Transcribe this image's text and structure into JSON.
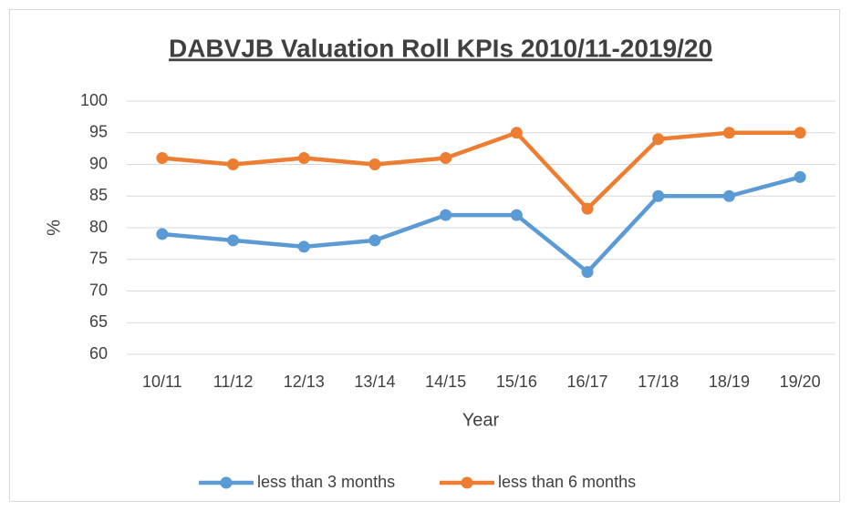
{
  "chart_data": {
    "type": "line",
    "title": "DABVJB Valuation Roll KPIs 2010/11-2019/20",
    "x_label": "Year",
    "y_label": "%",
    "categories": [
      "10/11",
      "11/12",
      "12/13",
      "13/14",
      "14/15",
      "15/16",
      "16/17",
      "17/18",
      "18/19",
      "19/20"
    ],
    "series": [
      {
        "name": "less than 3 months",
        "color": "#5b9bd5",
        "values": [
          79,
          78,
          77,
          78,
          82,
          82,
          73,
          85,
          85,
          88
        ]
      },
      {
        "name": "less than 6 months",
        "color": "#ed7d31",
        "values": [
          91,
          90,
          91,
          90,
          91,
          95,
          83,
          94,
          95,
          95
        ]
      }
    ],
    "ylim": [
      60,
      100
    ],
    "yticks": [
      60,
      65,
      70,
      75,
      80,
      85,
      90,
      95,
      100
    ],
    "grid": true,
    "legend": "bottom"
  }
}
